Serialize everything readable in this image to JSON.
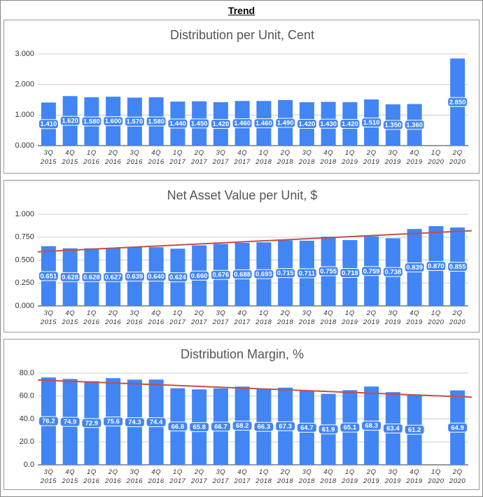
{
  "title": "Trend",
  "chart_data": [
    {
      "type": "bar",
      "title": "Distribution per Unit, Cent",
      "color": "#4285f4",
      "grid": true,
      "categories": [
        "3Q 2015",
        "4Q 2015",
        "1Q 2016",
        "2Q 2016",
        "3Q 2016",
        "4Q 2016",
        "1Q 2017",
        "2Q 2017",
        "3Q 2017",
        "4Q 2017",
        "1Q 2018",
        "2Q 2018",
        "3Q 2018",
        "4Q 2018",
        "1Q 2019",
        "2Q 2019",
        "3Q 2019",
        "4Q 2019",
        "1Q 2020",
        "2Q 2020"
      ],
      "values": [
        1.41,
        1.62,
        1.58,
        1.6,
        1.57,
        1.58,
        1.44,
        1.45,
        1.42,
        1.46,
        1.46,
        1.49,
        1.42,
        1.43,
        1.42,
        1.51,
        1.35,
        1.36,
        null,
        2.85
      ],
      "value_labels": [
        "1.410",
        "1.620",
        "1.580",
        "1.600",
        "1.570",
        "1.580",
        "1.440",
        "1.450",
        "1.420",
        "1.460",
        "1.460",
        "1.490",
        "1.420",
        "1.430",
        "1.420",
        "1.510",
        "1.350",
        "1.360",
        null,
        "2.850"
      ],
      "ylim": [
        0,
        3
      ],
      "yticks": [
        {
          "value": 0,
          "label": "0.000"
        },
        {
          "value": 1,
          "label": "1.000"
        },
        {
          "value": 2,
          "label": "2.000"
        },
        {
          "value": 3,
          "label": "3.000"
        }
      ]
    },
    {
      "type": "bar",
      "title": "Net Asset Value per Unit, $",
      "color": "#4285f4",
      "grid": true,
      "categories": [
        "3Q 2015",
        "4Q 2015",
        "1Q 2016",
        "2Q 2016",
        "3Q 2016",
        "4Q 2016",
        "1Q 2017",
        "2Q 2017",
        "3Q 2017",
        "4Q 2017",
        "1Q 2018",
        "2Q 2018",
        "3Q 2018",
        "4Q 2018",
        "1Q 2019",
        "2Q 2019",
        "3Q 2019",
        "4Q 2019",
        "1Q 2020",
        "2Q 2020"
      ],
      "values": [
        0.651,
        0.628,
        0.628,
        0.627,
        0.639,
        0.64,
        0.624,
        0.66,
        0.676,
        0.688,
        0.693,
        0.715,
        0.711,
        0.755,
        0.718,
        0.759,
        0.738,
        0.839,
        0.87,
        0.855
      ],
      "value_labels": [
        "0.651",
        "0.628",
        "0.628",
        "0.627",
        "0.639",
        "0.640",
        "0.624",
        "0.660",
        "0.676",
        "0.688",
        "0.693",
        "0.715",
        "0.711",
        "0.755",
        "0.718",
        "0.759",
        "0.738",
        "0.839",
        "0.870",
        "0.855"
      ],
      "ylim": [
        0,
        1
      ],
      "yticks": [
        {
          "value": 0,
          "label": "0.000"
        },
        {
          "value": 0.25,
          "label": "0.250"
        },
        {
          "value": 0.5,
          "label": "0.500"
        },
        {
          "value": 0.75,
          "label": "0.750"
        },
        {
          "value": 1,
          "label": "1.000"
        }
      ],
      "trendline": {
        "color": "#c0504d",
        "start": 0.59,
        "end": 0.82
      }
    },
    {
      "type": "bar",
      "title": "Distribution Margin, %",
      "color": "#4285f4",
      "grid": true,
      "categories": [
        "3Q 2015",
        "4Q 2015",
        "1Q 2016",
        "2Q 2016",
        "3Q 2016",
        "4Q 2016",
        "1Q 2017",
        "2Q 2017",
        "3Q 2017",
        "4Q 2017",
        "1Q 2018",
        "2Q 2018",
        "3Q 2018",
        "4Q 2018",
        "1Q 2019",
        "2Q 2019",
        "3Q 2019",
        "4Q 2019",
        "1Q 2020",
        "2Q 2020"
      ],
      "values": [
        76.2,
        74.9,
        72.9,
        75.6,
        74.3,
        74.4,
        66.8,
        65.8,
        66.7,
        68.2,
        66.3,
        67.3,
        64.7,
        61.9,
        65.1,
        68.3,
        63.4,
        61.2,
        null,
        64.9
      ],
      "ylim": [
        0,
        80
      ],
      "yticks": [
        {
          "value": 0,
          "label": "0.0"
        },
        {
          "value": 20,
          "label": "20.0"
        },
        {
          "value": 40,
          "label": "40.0"
        },
        {
          "value": 60,
          "label": "60.0"
        },
        {
          "value": 80,
          "label": "80.0"
        }
      ],
      "trendline": {
        "color": "#c0504d",
        "start": 74,
        "end": 59
      }
    }
  ]
}
